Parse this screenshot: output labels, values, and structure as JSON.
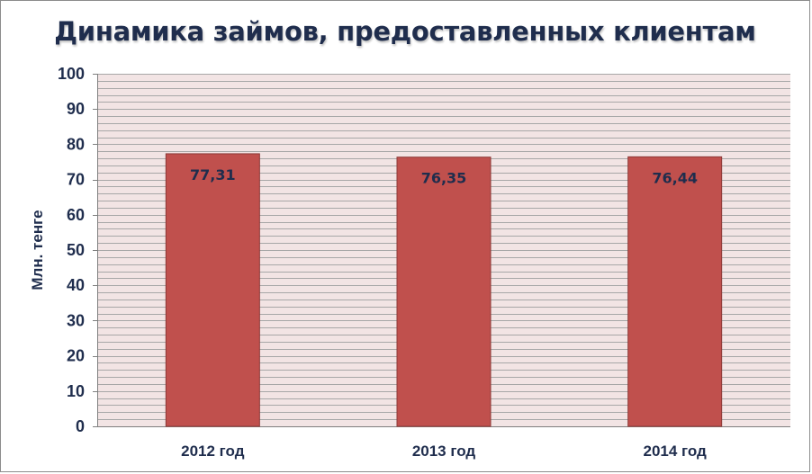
{
  "colors": {
    "bar_fill": "#c0504d",
    "bar_stroke": "#8c3836",
    "plot_background": "#f2e4e4",
    "gridline": "#a7a7a7",
    "axis_text": "#1f2d4d"
  },
  "chart_data": {
    "type": "bar",
    "title": "Динамика займов, предоставленных клиентам",
    "xlabel": "",
    "ylabel": "Млн. тенге",
    "categories": [
      "2012 год",
      "2013 год",
      "2014 год"
    ],
    "values": [
      77.31,
      76.35,
      76.44
    ],
    "data_labels": [
      "77,31",
      "76,35",
      "76,44"
    ],
    "ylim": [
      0,
      100
    ],
    "major_ticks": [
      "0",
      "10",
      "20",
      "30",
      "40",
      "50",
      "60",
      "70",
      "80",
      "90",
      "100"
    ],
    "minor_grid_step": 2,
    "grid": true,
    "legend": "none"
  }
}
